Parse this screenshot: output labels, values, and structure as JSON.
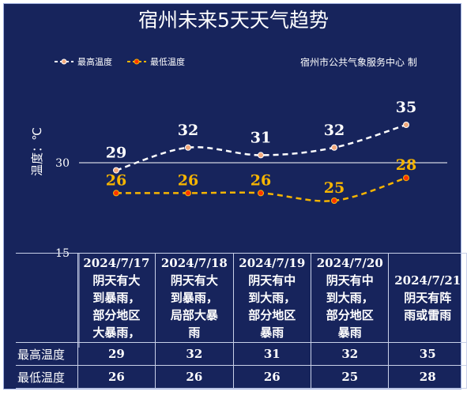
{
  "title": "宿州未来5天天气趋势",
  "credit": "宿州市公共气象服务中心  制",
  "legend": {
    "high": "最高温度",
    "low": "最低温度"
  },
  "colors": {
    "background": "#17245c",
    "high": "#ffffff",
    "low": "#f7b500",
    "high_marker": "#f1a87c",
    "low_marker": "#ff3300"
  },
  "table": {
    "high_label": "最高温度",
    "low_label": "最低温度"
  },
  "chart_data": {
    "type": "line",
    "ylabel": "温度：℃",
    "ylim": [
      15,
      35
    ],
    "yticks": [
      "15",
      "30"
    ],
    "categories": [
      "2024/7/17",
      "2024/7/18",
      "2024/7/19",
      "2024/7/20",
      "2024/7/21"
    ],
    "conditions": [
      [
        "阴天有大",
        "到暴雨，",
        "部分地区",
        "大暴雨，"
      ],
      [
        "阴天有大",
        "到暴雨，",
        "局部大暴",
        "雨"
      ],
      [
        "阴天有中",
        "到大雨，",
        "部分地区",
        "暴雨"
      ],
      [
        "阴天有中",
        "到大雨，",
        "部分地区",
        "暴雨"
      ],
      [
        "阴天有阵",
        "雨或雷雨"
      ]
    ],
    "series": [
      {
        "name": "最高温度",
        "values": [
          29,
          32,
          31,
          32,
          35
        ]
      },
      {
        "name": "最低温度",
        "values": [
          26,
          26,
          26,
          25,
          28
        ]
      }
    ]
  }
}
